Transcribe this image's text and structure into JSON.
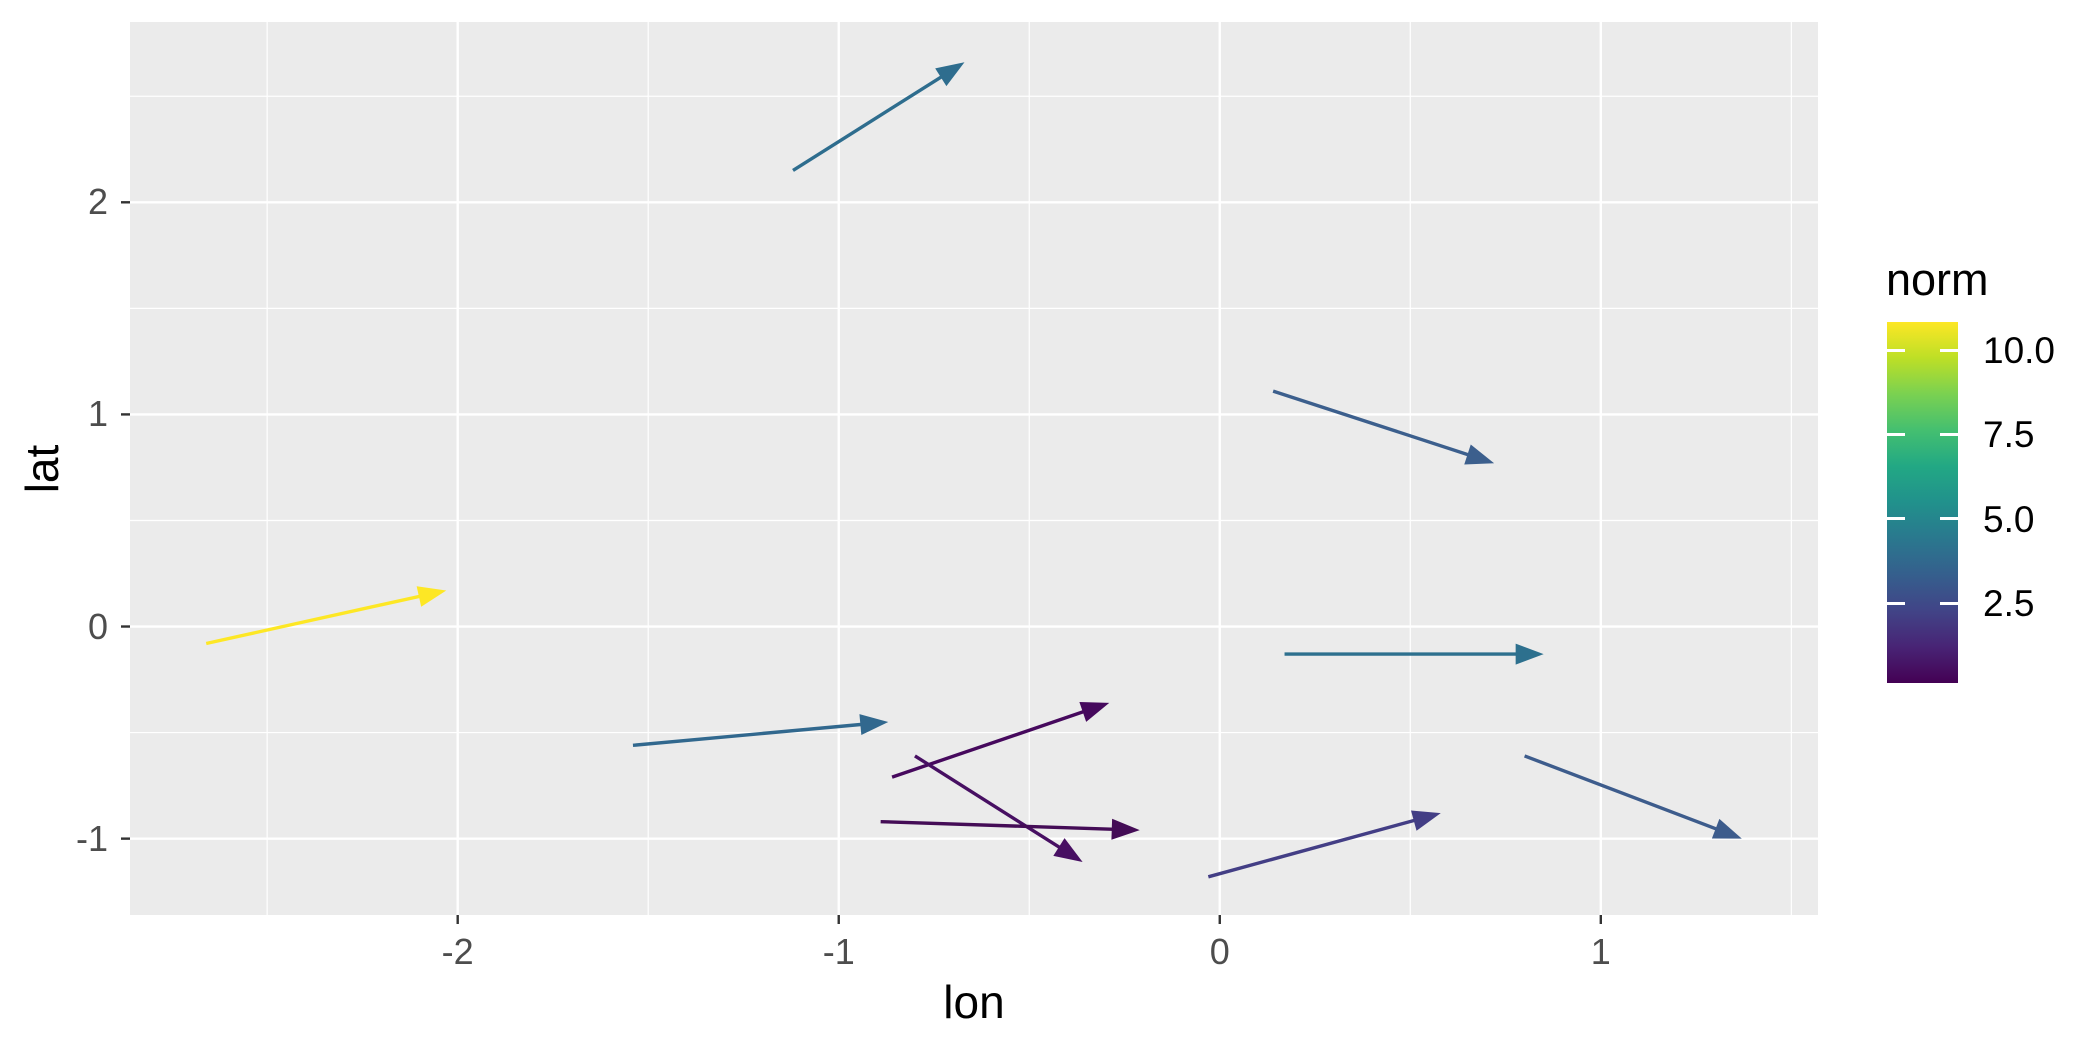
{
  "style": {
    "background": "#FFFFFF",
    "panel_bg": "#EBEBEB",
    "grid_color": "#FFFFFF",
    "axis_text_color": "#4D4D4D",
    "axis_title_color": "#000000",
    "tick_mark_color": "#333333"
  },
  "chart_data": {
    "type": "vector-arrows (geom_segment with closed arrowheads, ggplot2 style)",
    "title": "",
    "xlabel": "lon",
    "ylabel": "lat",
    "xlim": [
      -2.86,
      1.57
    ],
    "ylim": [
      -1.36,
      2.85
    ],
    "grid": "white major and minor gridlines on gray panel",
    "legend_position": "right",
    "x_major_ticks": [
      {
        "value": -2,
        "label": "-2"
      },
      {
        "value": -1,
        "label": "-1"
      },
      {
        "value": 0,
        "label": "0"
      },
      {
        "value": 1,
        "label": "1"
      }
    ],
    "y_major_ticks": [
      {
        "value": -1,
        "label": "-1"
      },
      {
        "value": 0,
        "label": "0"
      },
      {
        "value": 1,
        "label": "1"
      },
      {
        "value": 2,
        "label": "2"
      }
    ],
    "x_minor_ticks": [
      -2.5,
      -1.5,
      -0.5,
      0.5,
      1.5
    ],
    "y_minor_ticks": [
      -0.5,
      0.5,
      1.5,
      2.5
    ],
    "arrows": [
      {
        "x": -1.12,
        "y": 2.15,
        "xend": -0.67,
        "yend": 2.66,
        "color": "#2e6d8e",
        "norm_est": 4.6
      },
      {
        "x": 0.14,
        "y": 1.11,
        "xend": 0.72,
        "yend": 0.77,
        "color": "#3c5f8d",
        "norm_est": 3.3
      },
      {
        "x": -2.66,
        "y": -0.08,
        "xend": -2.03,
        "yend": 0.17,
        "color": "#fde725",
        "norm_est": 10.8
      },
      {
        "x": -1.54,
        "y": -0.56,
        "xend": -0.87,
        "yend": -0.45,
        "color": "#31688e",
        "norm_est": 4.2
      },
      {
        "x": 0.17,
        "y": -0.13,
        "xend": 0.85,
        "yend": -0.13,
        "color": "#2d708e",
        "norm_est": 4.8
      },
      {
        "x": -0.03,
        "y": -1.18,
        "xend": 0.58,
        "yend": -0.88,
        "color": "#433e85",
        "norm_est": 2.0
      },
      {
        "x": 0.8,
        "y": -0.61,
        "xend": 1.37,
        "yend": -1.0,
        "color": "#3d5c8c",
        "norm_est": 3.1
      },
      {
        "x": -0.86,
        "y": -0.71,
        "xend": -0.29,
        "yend": -0.36,
        "color": "#46095d",
        "norm_est": 0.7
      },
      {
        "x": -0.8,
        "y": -0.61,
        "xend": -0.36,
        "yend": -1.11,
        "color": "#470f62",
        "norm_est": 0.8
      },
      {
        "x": -0.89,
        "y": -0.92,
        "xend": -0.21,
        "yend": -0.96,
        "color": "#440c56",
        "norm_est": 0.5
      }
    ],
    "legend": {
      "title": "norm",
      "colormap": "viridis",
      "value_range": [
        0.13,
        10.83
      ],
      "ticks": [
        {
          "value": 10.0,
          "label": "10.0"
        },
        {
          "value": 7.5,
          "label": "7.5"
        },
        {
          "value": 5.0,
          "label": "5.0"
        },
        {
          "value": 2.5,
          "label": "2.5"
        }
      ],
      "gradient_stops": [
        "#440154",
        "#482475",
        "#414487",
        "#355f8d",
        "#2a788e",
        "#21918c",
        "#22a884",
        "#44bf70",
        "#7ad151",
        "#bddf26",
        "#fde725"
      ]
    }
  }
}
